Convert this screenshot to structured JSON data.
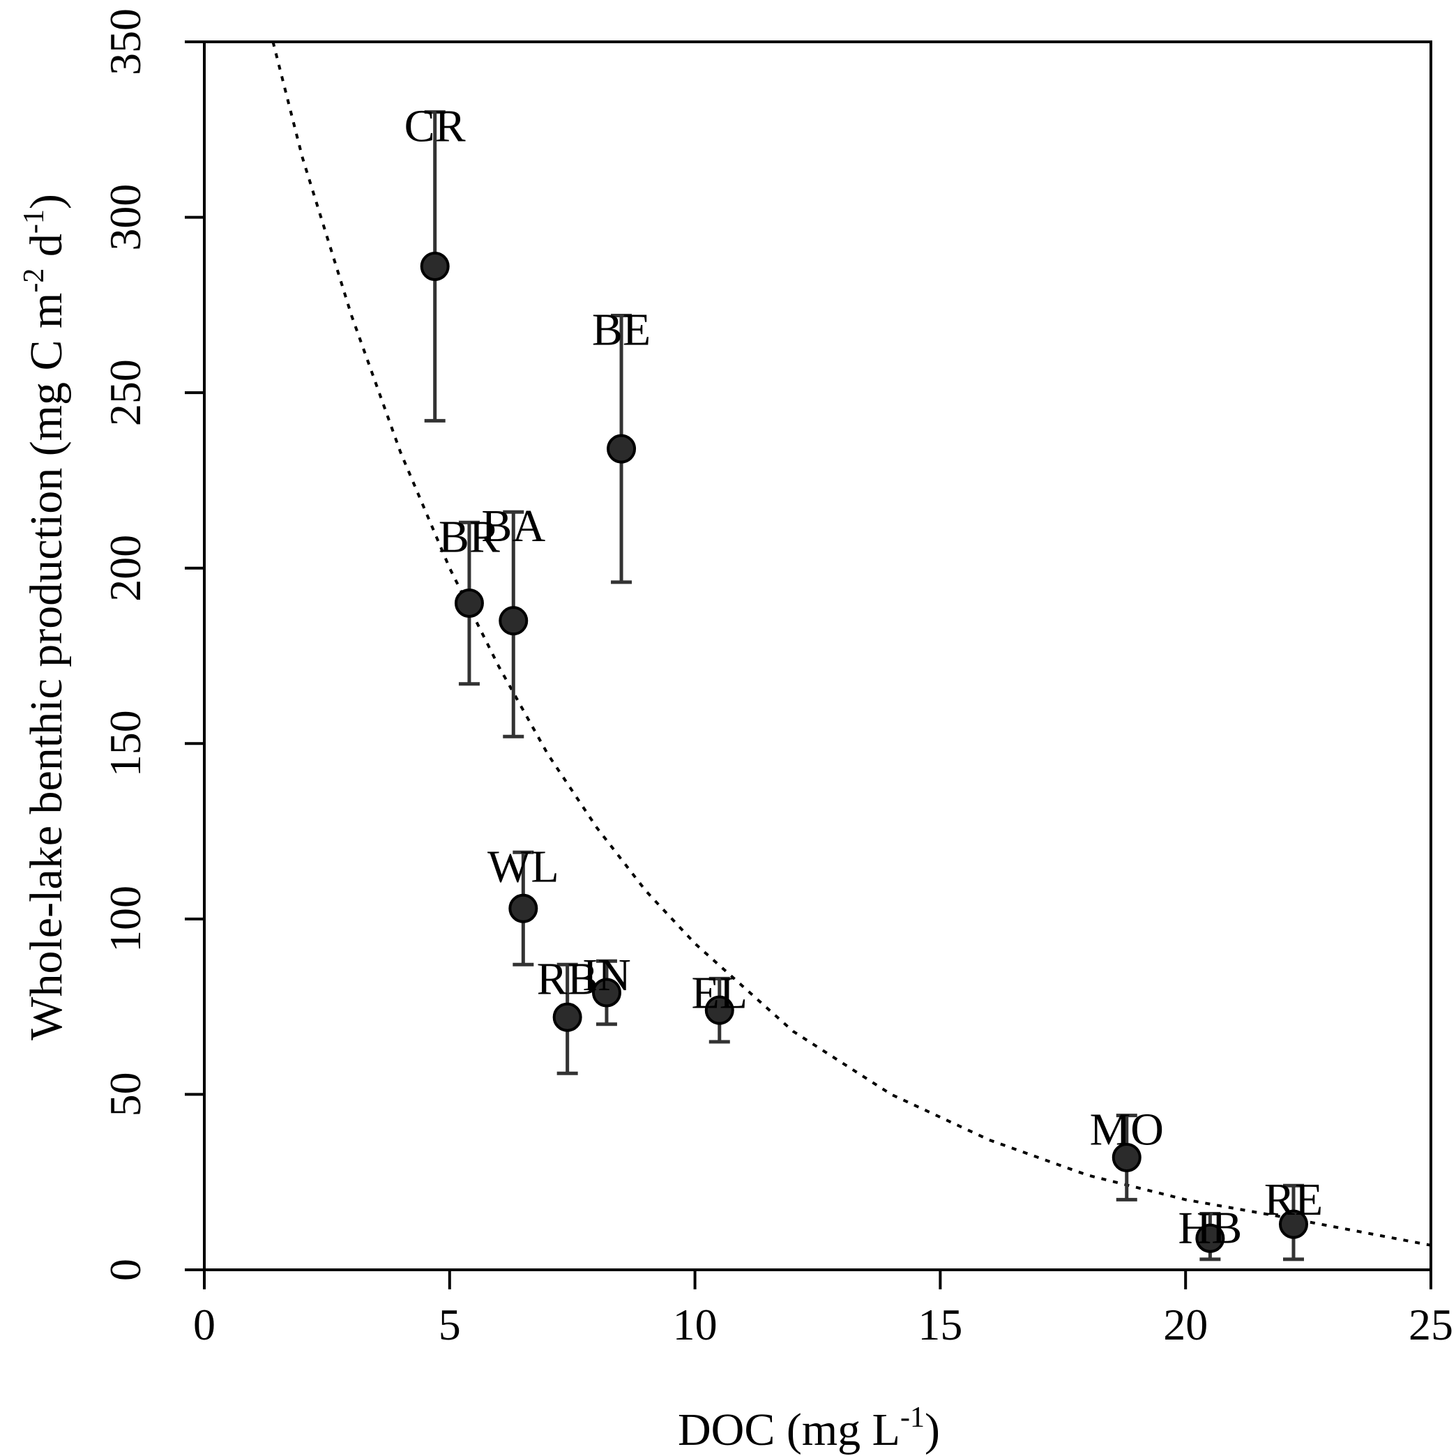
{
  "chart_data": {
    "type": "scatter",
    "title": "",
    "xlabel": "DOC (mg L",
    "xlabel_sup": "-1",
    "xlabel_end": ")",
    "ylabel_parts": [
      {
        "text": "Whole-lake benthic production (mg C  m"
      },
      {
        "text": "-2",
        "sup": true
      },
      {
        "text": " d"
      },
      {
        "text": "-1",
        "sup": true
      },
      {
        "text": ")"
      }
    ],
    "xlim": [
      0,
      25
    ],
    "ylim": [
      0,
      350
    ],
    "xticks": [
      0,
      5,
      10,
      15,
      20,
      25
    ],
    "yticks": [
      0,
      50,
      100,
      150,
      200,
      250,
      300,
      350
    ],
    "grid": false,
    "legend": "none",
    "marker_color": "#2b2b2b",
    "errorbar_color": "#333333",
    "points": [
      {
        "label": "CR",
        "x": 4.7,
        "y": 286,
        "err_low": 242,
        "err_high": 330
      },
      {
        "label": "BR",
        "x": 5.4,
        "y": 190,
        "err_low": 167,
        "err_high": 213
      },
      {
        "label": "BA",
        "x": 6.3,
        "y": 185,
        "err_low": 152,
        "err_high": 216
      },
      {
        "label": "BE",
        "x": 8.5,
        "y": 234,
        "err_low": 196,
        "err_high": 272
      },
      {
        "label": "WL",
        "x": 6.5,
        "y": 103,
        "err_low": 87,
        "err_high": 119
      },
      {
        "label": "RB",
        "x": 7.4,
        "y": 72,
        "err_low": 56,
        "err_high": 87
      },
      {
        "label": "IN",
        "x": 8.2,
        "y": 79,
        "err_low": 70,
        "err_high": 88
      },
      {
        "label": "EL",
        "x": 10.5,
        "y": 74,
        "err_low": 65,
        "err_high": 83
      },
      {
        "label": "MO",
        "x": 18.8,
        "y": 32,
        "err_low": 20,
        "err_high": 44
      },
      {
        "label": "HB",
        "x": 20.5,
        "y": 9,
        "err_low": 3,
        "err_high": 16
      },
      {
        "label": "RE",
        "x": 22.2,
        "y": 13,
        "err_low": 3,
        "err_high": 24
      }
    ],
    "fit_curve": {
      "style": "dotted",
      "x": [
        1.4,
        2,
        3,
        4,
        5,
        6,
        7,
        8,
        9,
        10,
        12,
        14,
        16,
        18,
        20,
        22,
        25
      ],
      "y": [
        350,
        317,
        272,
        233,
        200,
        172,
        147,
        126,
        108,
        93,
        68,
        50,
        37,
        27,
        20,
        15,
        7
      ]
    }
  }
}
